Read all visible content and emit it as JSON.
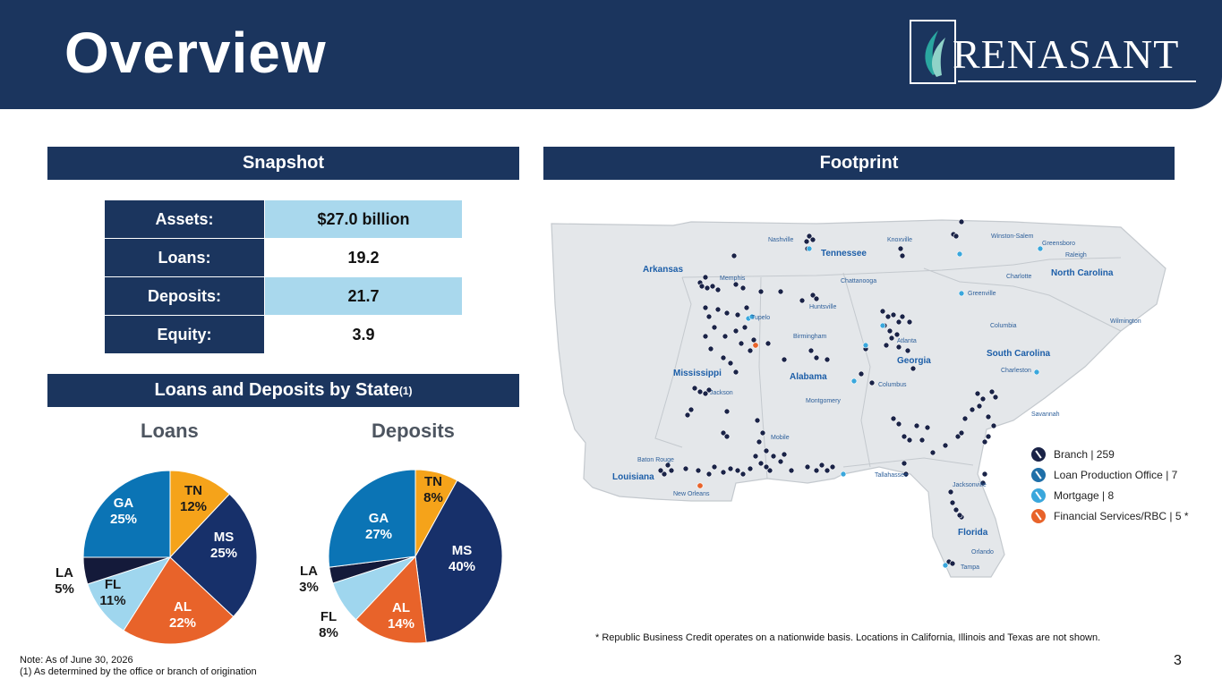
{
  "header": {
    "title": "Overview",
    "logo_text": "RENASANT"
  },
  "snapshot": {
    "heading": "Snapshot",
    "rows": [
      {
        "label": "Assets:",
        "value": "$27.0 billion"
      },
      {
        "label": "Loans:",
        "value": "19.2"
      },
      {
        "label": "Deposits:",
        "value": "21.7"
      },
      {
        "label": "Equity:",
        "value": "3.9"
      }
    ]
  },
  "by_state": {
    "heading": "Loans and Deposits by State",
    "heading_sup": "(1)"
  },
  "footprint": {
    "heading": "Footprint",
    "states": [
      "Arkansas",
      "Tennessee",
      "North Carolina",
      "Mississippi",
      "Alabama",
      "Georgia",
      "South Carolina",
      "Louisiana",
      "Florida"
    ],
    "cities": [
      "Nashville",
      "Knoxville",
      "Winston-Salem",
      "Greensboro",
      "Raleigh",
      "Memphis",
      "Chattanooga",
      "Charlotte",
      "Tupelo",
      "Huntsville",
      "Greenville",
      "Wilmington",
      "Birmingham",
      "Atlanta",
      "Columbia",
      "Charleston",
      "Jackson",
      "Columbus",
      "Montgomery",
      "Savannah",
      "Mobile",
      "Baton Rouge",
      "New Orleans",
      "Tallahassee",
      "Jacksonville",
      "Orlando",
      "Tampa"
    ],
    "legend": [
      {
        "label": "Branch | 259",
        "color": "#1a2347"
      },
      {
        "label": "Loan Production Office | 7",
        "color": "#1f6fa8"
      },
      {
        "label": "Mortgage | 8",
        "color": "#3aa7dc"
      },
      {
        "label": "Financial Services/RBC | 5 *",
        "color": "#e8632a"
      }
    ],
    "footnote": "* Republic Business Credit operates on a nationwide basis. Locations in California, Illinois and Texas are not shown."
  },
  "notes": {
    "line1": "Note:  As of June 30, 2026",
    "line2": "(1)  As determined by the office or branch of origination"
  },
  "page_number": "3",
  "chart_data": [
    {
      "type": "pie",
      "title": "Loans",
      "slices": [
        {
          "label": "TN",
          "value": 12,
          "display": "12%",
          "color": "#f5a31a"
        },
        {
          "label": "MS",
          "value": 25,
          "display": "25%",
          "color": "#17306a"
        },
        {
          "label": "AL",
          "value": 22,
          "display": "22%",
          "color": "#e8632a"
        },
        {
          "label": "FL",
          "value": 11,
          "display": "11%",
          "color": "#9fd6ee"
        },
        {
          "label": "LA",
          "value": 5,
          "display": "5%",
          "color": "#141a3a"
        },
        {
          "label": "GA",
          "value": 25,
          "display": "25%",
          "color": "#0b74b5"
        }
      ]
    },
    {
      "type": "pie",
      "title": "Deposits",
      "slices": [
        {
          "label": "TN",
          "value": 8,
          "display": "8%",
          "color": "#f5a31a"
        },
        {
          "label": "MS",
          "value": 40,
          "display": "40%",
          "color": "#17306a"
        },
        {
          "label": "AL",
          "value": 14,
          "display": "14%",
          "color": "#e8632a"
        },
        {
          "label": "FL",
          "value": 8,
          "display": "8%",
          "color": "#9fd6ee"
        },
        {
          "label": "LA",
          "value": 3,
          "display": "3%",
          "color": "#141a3a"
        },
        {
          "label": "GA",
          "value": 27,
          "display": "27%",
          "color": "#0b74b5"
        }
      ]
    }
  ]
}
